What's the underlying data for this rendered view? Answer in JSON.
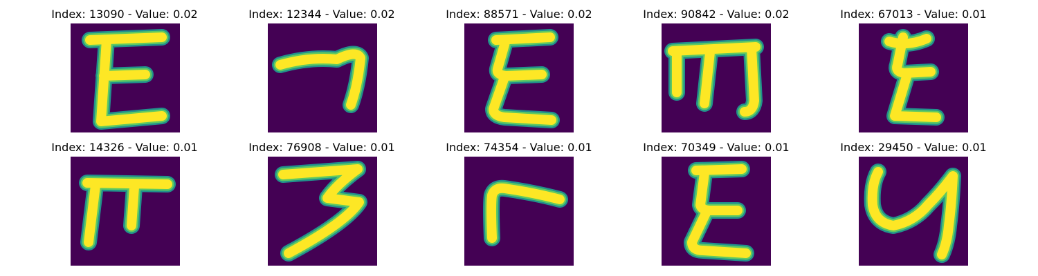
{
  "colors": {
    "background": "#440154",
    "stroke_core": "#fde725",
    "stroke_mid": "#5ec962",
    "stroke_edge": "#21918c"
  },
  "rows": [
    [
      {
        "title": "Index: 13090 - Value: 0.02"
      },
      {
        "title": "Index: 12344 - Value: 0.02"
      },
      {
        "title": "Index: 88571 - Value: 0.02"
      },
      {
        "title": "Index: 90842 - Value: 0.02"
      },
      {
        "title": "Index: 67013 - Value: 0.01"
      }
    ],
    [
      {
        "title": "Index: 14326 - Value: 0.01"
      },
      {
        "title": "Index: 76908 - Value: 0.01"
      },
      {
        "title": "Index: 74354 - Value: 0.01"
      },
      {
        "title": "Index: 70349 - Value: 0.01"
      },
      {
        "title": "Index: 29450 - Value: 0.01"
      }
    ]
  ]
}
